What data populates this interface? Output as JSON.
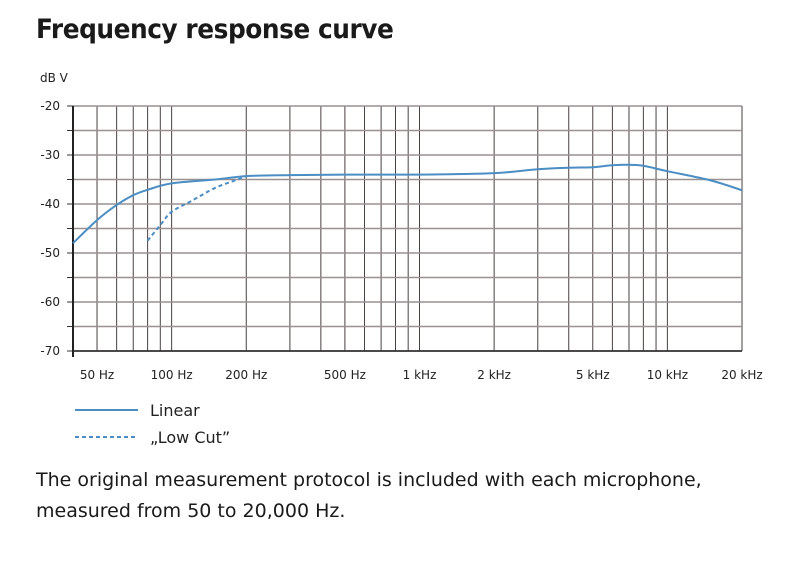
{
  "chart_data": {
    "type": "line",
    "title": "Frequency response curve",
    "ylabel": "dB V",
    "xlabel": "",
    "xscale": "log",
    "xlim": [
      40,
      20000
    ],
    "ylim": [
      -70,
      -20
    ],
    "grid": true,
    "x_ticks": [
      {
        "value": 50,
        "label": "50 Hz"
      },
      {
        "value": 100,
        "label": "100 Hz"
      },
      {
        "value": 200,
        "label": "200 Hz"
      },
      {
        "value": 500,
        "label": "500 Hz"
      },
      {
        "value": 1000,
        "label": "1 kHz"
      },
      {
        "value": 2000,
        "label": "2 kHz"
      },
      {
        "value": 5000,
        "label": "5 kHz"
      },
      {
        "value": 10000,
        "label": "10 kHz"
      },
      {
        "value": 20000,
        "label": "20 kHz"
      }
    ],
    "y_ticks": [
      {
        "value": -20,
        "label": "-20"
      },
      {
        "value": -30,
        "label": "-30"
      },
      {
        "value": -40,
        "label": "-40"
      },
      {
        "value": -50,
        "label": "-50"
      },
      {
        "value": -60,
        "label": "-60"
      },
      {
        "value": -70,
        "label": "-70"
      }
    ],
    "legend_position": "bottom-left",
    "series": [
      {
        "name": "Linear",
        "style": "solid",
        "color": "#4a8ec4",
        "x": [
          40,
          50,
          60,
          70,
          80,
          100,
          150,
          200,
          300,
          500,
          1000,
          2000,
          3000,
          4000,
          5000,
          6000,
          7000,
          8000,
          10000,
          15000,
          20000
        ],
        "y": [
          -48,
          -43.3,
          -40.2,
          -38.2,
          -37.1,
          -35.8,
          -35.0,
          -34.3,
          -34.1,
          -34.0,
          -34.0,
          -33.7,
          -32.9,
          -32.6,
          -32.5,
          -32.1,
          -32.0,
          -32.2,
          -33.3,
          -35.2,
          -37.2
        ]
      },
      {
        "name": "„Low Cut”",
        "style": "dashed",
        "color": "#4a8ec4",
        "x": [
          80,
          90,
          100,
          120,
          150,
          180,
          200
        ],
        "y": [
          -47.5,
          -44.3,
          -41.6,
          -39.4,
          -36.7,
          -35.2,
          -34.3
        ]
      }
    ]
  },
  "note": [
    "The original measurement protocol is included with each microphone,",
    "measured from 50 to 20,000 Hz."
  ]
}
